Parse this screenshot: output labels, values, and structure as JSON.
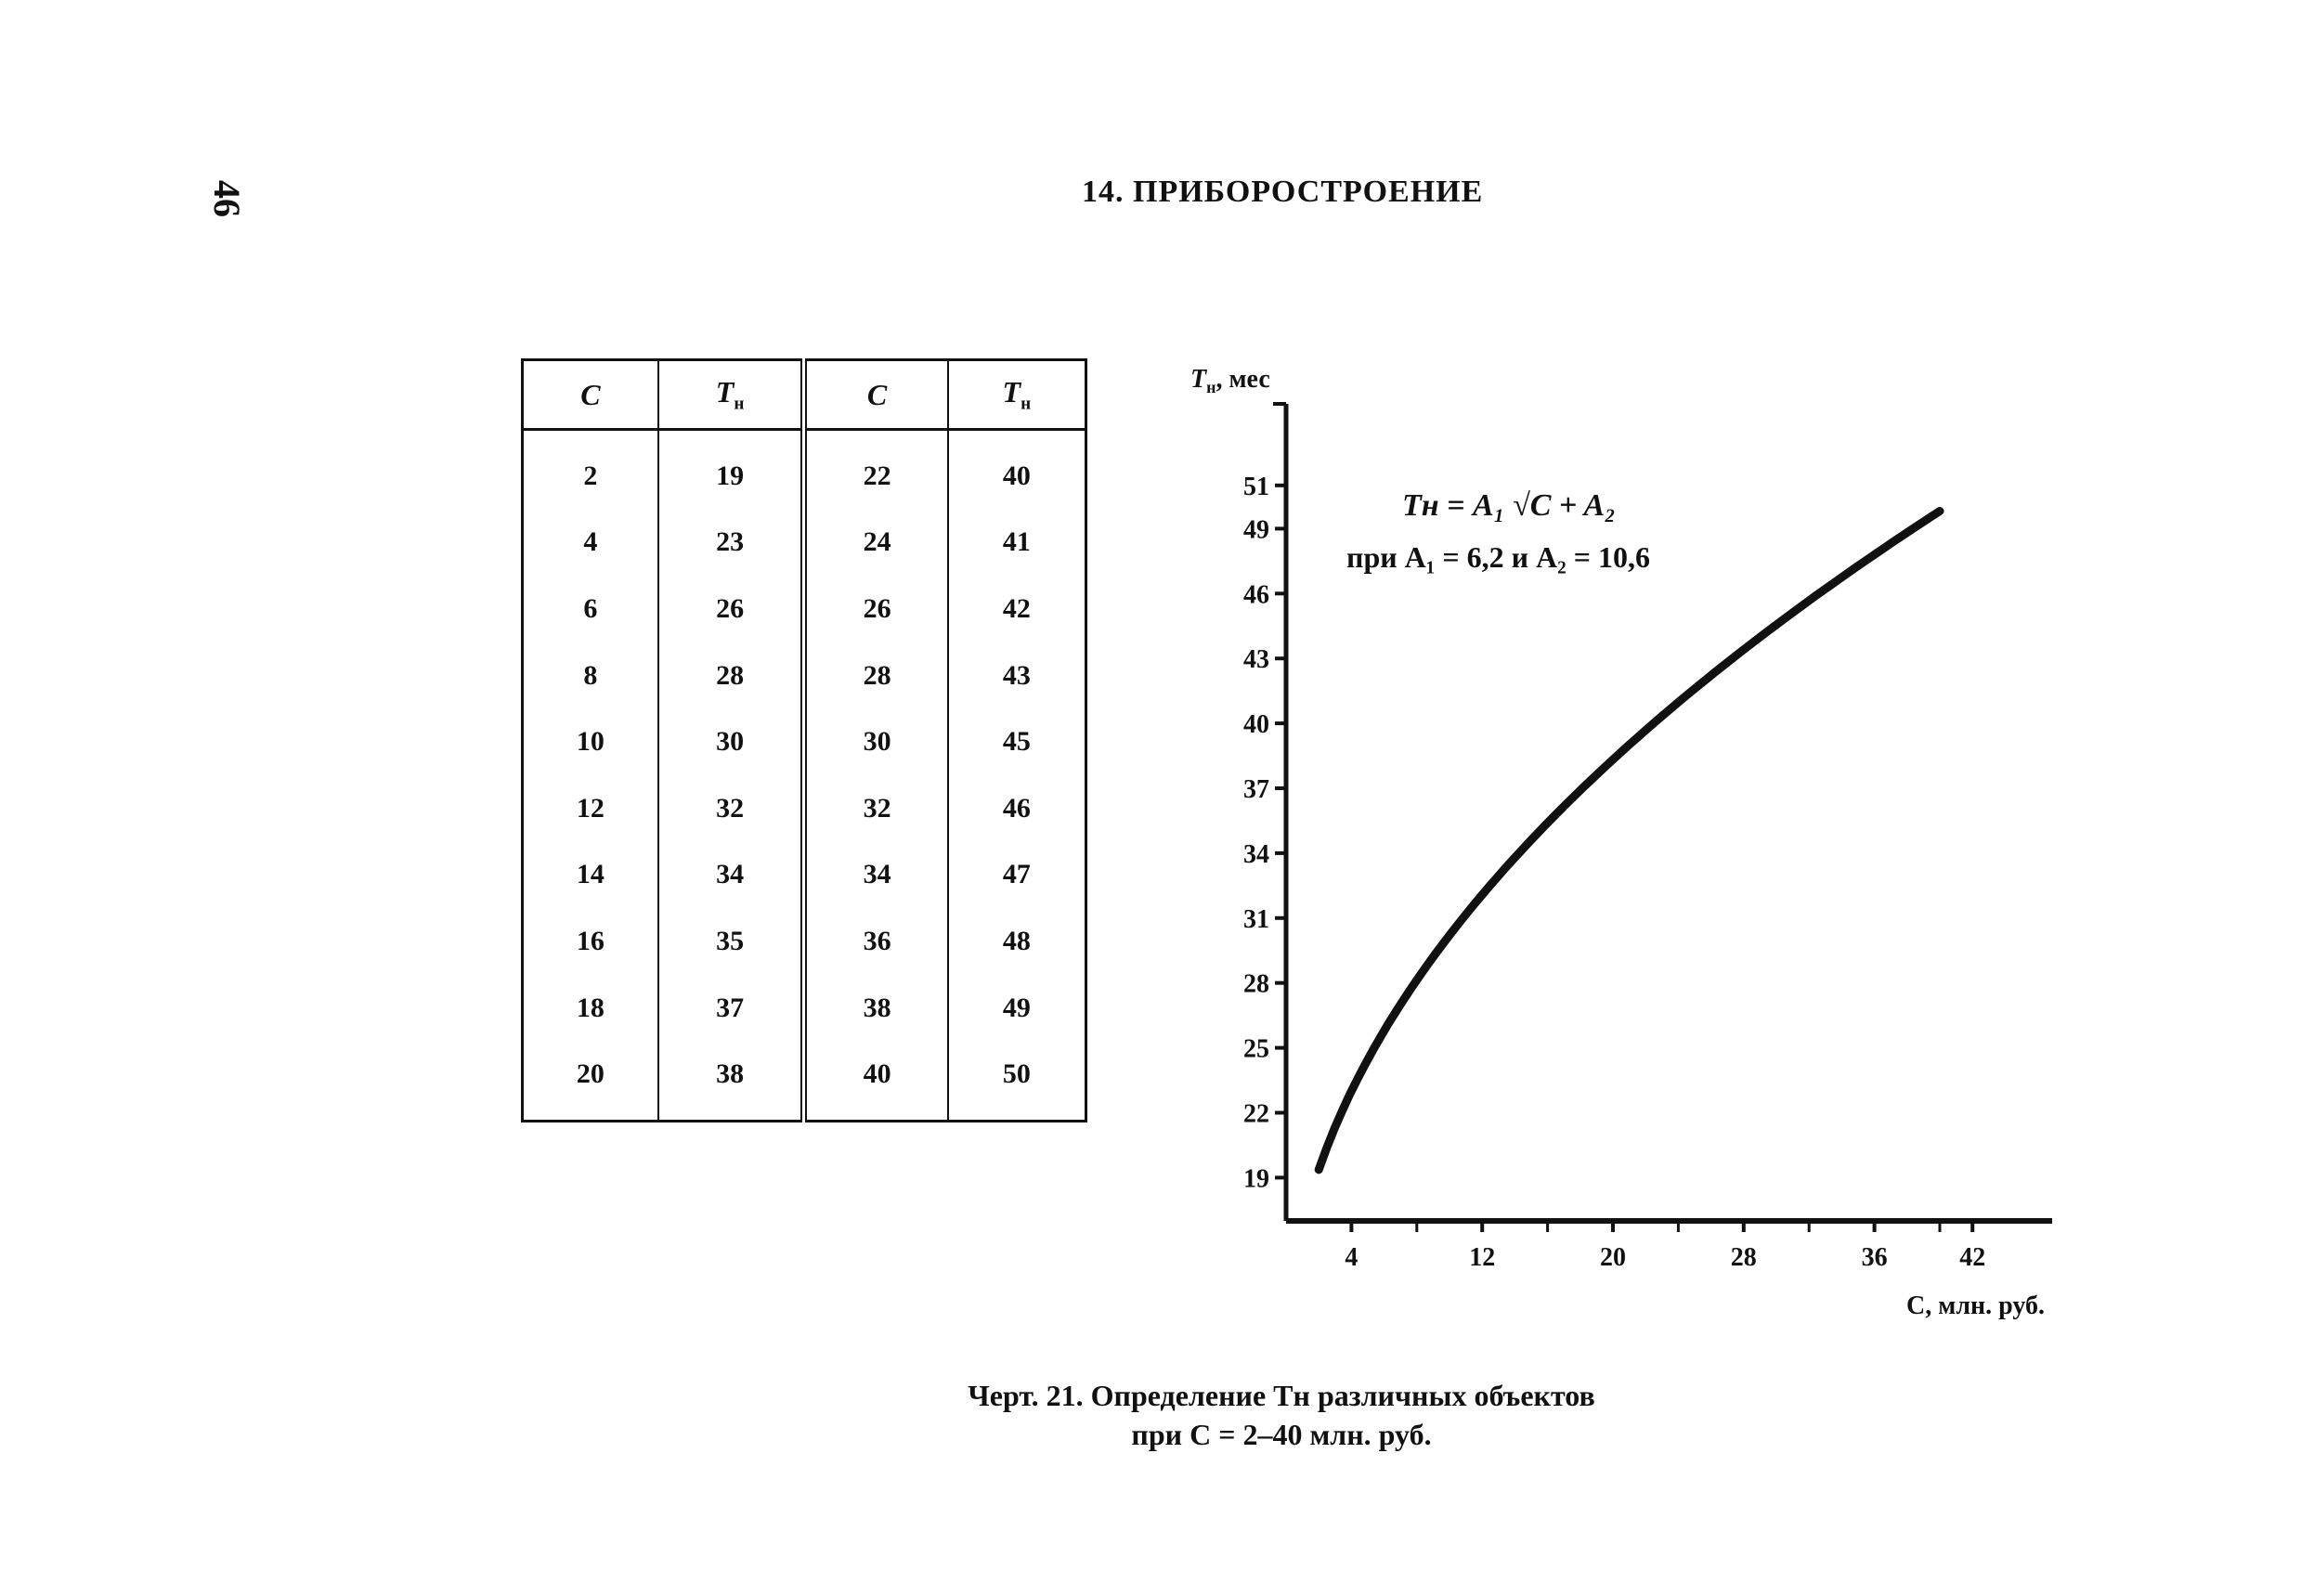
{
  "page": {
    "number": "46",
    "section_title": "14. ПРИБОРОСТРОЕНИЕ"
  },
  "table": {
    "headers": [
      "C",
      "Tн",
      "C",
      "Tн"
    ],
    "rows": [
      [
        "2",
        "19",
        "22",
        "40"
      ],
      [
        "4",
        "23",
        "24",
        "41"
      ],
      [
        "6",
        "26",
        "26",
        "42"
      ],
      [
        "8",
        "28",
        "28",
        "43"
      ],
      [
        "10",
        "30",
        "30",
        "45"
      ],
      [
        "12",
        "32",
        "32",
        "46"
      ],
      [
        "14",
        "34",
        "34",
        "47"
      ],
      [
        "16",
        "35",
        "36",
        "48"
      ],
      [
        "18",
        "37",
        "38",
        "49"
      ],
      [
        "20",
        "38",
        "40",
        "50"
      ]
    ]
  },
  "chart_data": {
    "type": "line",
    "ylabel": "Tн, мес",
    "xlabel": "C, млн. руб.",
    "y_ticks": [
      19,
      22,
      25,
      28,
      31,
      34,
      37,
      40,
      43,
      46,
      49,
      51
    ],
    "x_ticks": [
      4,
      12,
      20,
      28,
      36,
      42
    ],
    "xlim": [
      0,
      44
    ],
    "ylim": [
      17,
      51
    ],
    "formula_line1": "Tн = A₁ √C + A₂",
    "formula_line2": "при A₁ = 6,2 и A₂ = 10,6",
    "series": [
      {
        "x": [
          2,
          4,
          6,
          8,
          10,
          12,
          14,
          16,
          18,
          20,
          22,
          24,
          26,
          28,
          30,
          32,
          34,
          36,
          38,
          40
        ],
        "y": [
          19,
          23,
          26,
          28,
          30,
          32,
          34,
          35,
          37,
          38,
          40,
          41,
          42,
          43,
          45,
          46,
          47,
          48,
          49,
          50
        ]
      }
    ]
  },
  "caption": {
    "line1": "Черт. 21. Определение Tн различных объектов",
    "line2": "при C = 2–40 млн. руб."
  }
}
